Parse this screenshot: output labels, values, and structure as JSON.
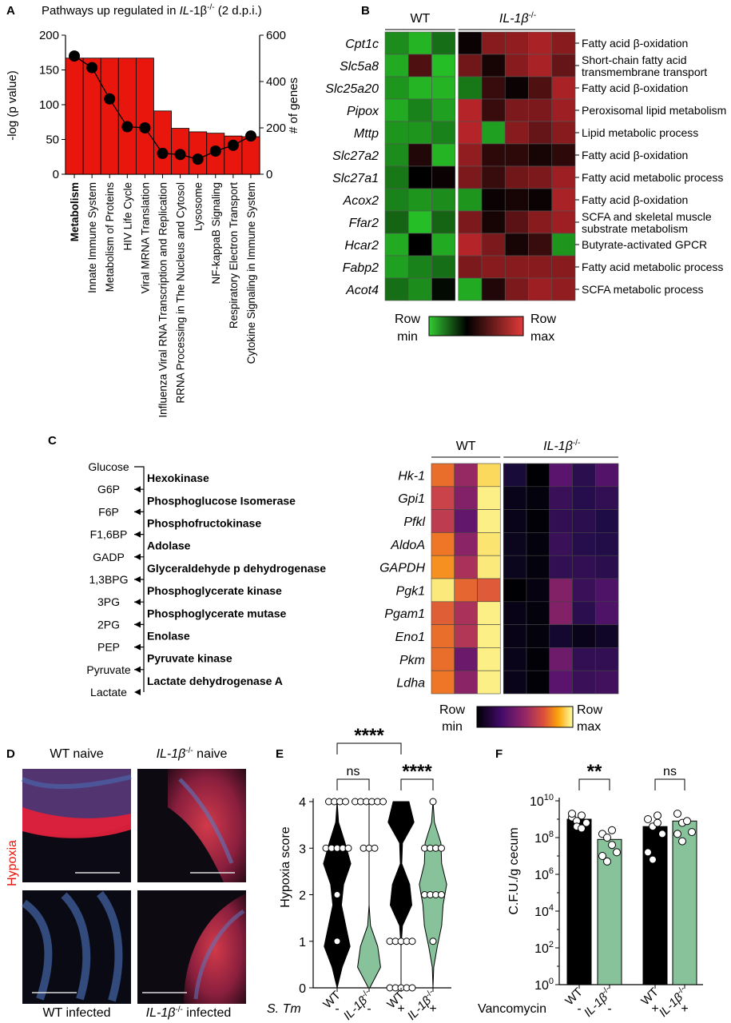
{
  "figure": {
    "panel_letters": [
      "A",
      "B",
      "C",
      "D",
      "E",
      "F"
    ]
  },
  "colors": {
    "bar_red": "#e8160c",
    "green_fill": "#87c29b",
    "heatmap_green": "#33cc33",
    "heatmap_red": "#d9333f",
    "inferno_low": "#160b39",
    "inferno_high": "#fcffa4"
  },
  "chart_data": [
    {
      "panel": "A",
      "type": "bar",
      "title": "Pathways up regulated in IL-1β-/- (2 d.p.i.)",
      "title_prefix": "Pathways up regulated in ",
      "title_gene": "IL",
      "title_rest": "-1β",
      "title_sup": "-/-",
      "title_suffix": " (2 d.p.i.)",
      "ylabel": "-log (p value)",
      "y2label": "# of genes",
      "ylim": [
        0,
        200
      ],
      "y2lim": [
        0,
        600
      ],
      "yticks": [
        "0",
        "50",
        "100",
        "150",
        "200"
      ],
      "y2ticks": [
        "0",
        "200",
        "400",
        "600"
      ],
      "categories": [
        "Metabolism",
        "Innate Immune System",
        "Metabolism of Proteins",
        "HIV Life Cycle",
        "Viral MRNA Translation",
        "Influenza Viral RNA Transcription and Replication",
        "RRNA Processing in The Nucleus and Cytosol",
        "Lysosome",
        "NF-kappaB Signaling",
        "Respiratory Electron Transport",
        "Cytokine Signaling in Immune System"
      ],
      "bold_category": "Metabolism",
      "values": [
        167,
        167,
        167,
        167,
        167,
        91,
        66,
        61,
        59,
        55,
        54
      ],
      "line_values": [
        510,
        460,
        325,
        205,
        200,
        90,
        85,
        65,
        100,
        125,
        165
      ]
    },
    {
      "panel": "B",
      "type": "heatmap",
      "groups": [
        {
          "label": "WT",
          "n": 3
        },
        {
          "label": "IL-1β-/-",
          "gene": "IL-1β",
          "sup": "-/-",
          "n": 5
        }
      ],
      "rows": [
        "Cpt1c",
        "Slc5a8",
        "Slc25a20",
        "Pipox",
        "Mttp",
        "Slc27a2",
        "Slc27a1",
        "Acox2",
        "Ffar2",
        "Hcar2",
        "Fabp2",
        "Acot4"
      ],
      "annotations": [
        [
          "Fatty acid β-oxidation"
        ],
        [
          "Short-chain fatty acid",
          "transmembrane transport"
        ],
        [
          "Fatty acid β-oxidation"
        ],
        [
          "Peroxisomal lipid metabolism"
        ],
        [
          "Lipid metabolic process"
        ],
        [
          "Fatty acid β-oxidation"
        ],
        [
          "Fatty acid metabolic process"
        ],
        [
          "Fatty acid β-oxidation"
        ],
        [
          "SCFA and skeletal muscle",
          "substrate metabolism"
        ],
        [
          "Butyrate-activated GPCR"
        ],
        [
          "Fatty acid metabolic process"
        ],
        [
          "SCFA metabolic process"
        ]
      ],
      "values": [
        [
          -0.7,
          -0.9,
          -0.55,
          0.05,
          0.6,
          0.65,
          0.75,
          0.6
        ],
        [
          -0.85,
          0.35,
          -0.95,
          0.5,
          0.1,
          0.6,
          0.75,
          0.45
        ],
        [
          -0.75,
          -0.9,
          -0.9,
          -0.6,
          0.25,
          0.05,
          0.35,
          0.75
        ],
        [
          -0.85,
          -0.65,
          -0.8,
          0.8,
          0.25,
          0.55,
          0.55,
          0.7
        ],
        [
          -0.75,
          -0.75,
          -0.65,
          0.8,
          -0.8,
          0.6,
          0.45,
          0.6
        ],
        [
          -0.7,
          0.15,
          -0.9,
          0.65,
          0.2,
          0.2,
          0.1,
          0.2
        ],
        [
          -0.6,
          0.0,
          0.05,
          0.55,
          0.25,
          0.5,
          0.55,
          0.7
        ],
        [
          -0.65,
          -0.75,
          -0.7,
          -0.75,
          0.05,
          0.1,
          0.05,
          0.75
        ],
        [
          -0.5,
          -0.95,
          -0.5,
          0.55,
          0.1,
          0.4,
          0.6,
          0.7
        ],
        [
          -0.85,
          0.0,
          -0.85,
          0.8,
          0.55,
          0.1,
          0.25,
          -0.75
        ],
        [
          -0.8,
          -0.65,
          -0.55,
          0.55,
          0.6,
          0.6,
          0.6,
          0.6
        ],
        [
          -0.55,
          -0.7,
          -0.05,
          -0.85,
          0.15,
          0.55,
          0.7,
          0.65
        ]
      ],
      "legend": {
        "min_top": "Row",
        "min_bottom": "min",
        "max_top": "Row",
        "max_bottom": "max"
      }
    },
    {
      "panel": "C",
      "type": "heatmap",
      "pathway_metabolites": [
        "Glucose",
        "G6P",
        "F6P",
        "F1,6BP",
        "GADP",
        "1,3BPG",
        "3PG",
        "2PG",
        "PEP",
        "Pyruvate",
        "Lactate"
      ],
      "pathway_enzymes": [
        "Hexokinase",
        "Phosphoglucose Isomerase",
        "Phosphofructokinase",
        "Adolase",
        "Glyceraldehyde p dehydrogenase",
        "Phosphoglycerate kinase",
        "Phosphoglycerate mutase",
        "Enolase",
        "Pyruvate kinase",
        "Lactate dehydrogenase A"
      ],
      "groups": [
        {
          "label": "WT",
          "n": 3
        },
        {
          "label": "IL-1β-/-",
          "gene": "IL-1β",
          "sup": "-/-",
          "n": 5
        }
      ],
      "rows": [
        "Hk-1",
        "Gpi1",
        "Pfkl",
        "AldoA",
        "GAPDH",
        "Pgk1",
        "Pgam1",
        "Eno1",
        "Pkm",
        "Ldha"
      ],
      "values": [
        [
          0.7,
          0.45,
          0.93,
          0.12,
          0.0,
          0.3,
          0.18,
          0.28
        ],
        [
          0.58,
          0.4,
          0.97,
          0.05,
          0.02,
          0.22,
          0.17,
          0.2
        ],
        [
          0.55,
          0.32,
          0.97,
          0.05,
          0.01,
          0.2,
          0.18,
          0.15
        ],
        [
          0.72,
          0.42,
          0.95,
          0.06,
          0.02,
          0.22,
          0.17,
          0.16
        ],
        [
          0.78,
          0.5,
          0.96,
          0.06,
          0.02,
          0.2,
          0.2,
          0.18
        ],
        [
          0.96,
          0.68,
          0.65,
          0.0,
          0.03,
          0.4,
          0.22,
          0.27
        ],
        [
          0.66,
          0.5,
          0.97,
          0.04,
          0.02,
          0.4,
          0.18,
          0.27
        ],
        [
          0.7,
          0.52,
          0.97,
          0.04,
          0.02,
          0.1,
          0.05,
          0.08
        ],
        [
          0.7,
          0.34,
          0.97,
          0.05,
          0.01,
          0.35,
          0.2,
          0.2
        ],
        [
          0.72,
          0.42,
          0.97,
          0.05,
          0.01,
          0.3,
          0.22,
          0.24
        ]
      ],
      "legend": {
        "min_top": "Row",
        "min_bottom": "min",
        "max_top": "Row",
        "max_bottom": "max"
      }
    },
    {
      "panel": "E",
      "type": "scatter",
      "ylabel": "Hypoxia score",
      "ylim": [
        0,
        4
      ],
      "yticks": [
        "0",
        "1",
        "2",
        "3",
        "4"
      ],
      "categories": [
        {
          "label": "WT",
          "italic": false,
          "fill": "#000000"
        },
        {
          "label": "IL-1β-/-",
          "gene": "IL-1β",
          "sup": "-/-",
          "italic": true,
          "fill": "#87c29b"
        },
        {
          "label": "WT",
          "italic": false,
          "fill": "#000000"
        },
        {
          "label": "IL-1β-/-",
          "gene": "IL-1β",
          "sup": "-/-",
          "italic": true,
          "fill": "#87c29b"
        }
      ],
      "points": [
        [
          4,
          4,
          4,
          4,
          3,
          3,
          3,
          3,
          3,
          2,
          1
        ],
        [
          4,
          4,
          4,
          4,
          4,
          4,
          3,
          3,
          3
        ],
        [
          1,
          1,
          1,
          1,
          1,
          0,
          0,
          0,
          0,
          0
        ],
        [
          4,
          3,
          3,
          3,
          3,
          2,
          2,
          2,
          2,
          1
        ]
      ],
      "violin_widths": [
        [
          0,
          0.1,
          0.55,
          0.95,
          0.45,
          0.3,
          0.6,
          0.9,
          0.35,
          0
        ],
        [
          0,
          0,
          0,
          0,
          0,
          0,
          0.1,
          0.6,
          0.8,
          0.05
        ],
        [
          0.55,
          0.9,
          0.1,
          0.05,
          0.6,
          0.75,
          0.1,
          0,
          0,
          0
        ],
        [
          0,
          0.1,
          0.55,
          0.6,
          0.95,
          0.7,
          0.6,
          0.3,
          0.05,
          0
        ]
      ],
      "significance": [
        {
          "label": "ns",
          "from": 0,
          "to": 1
        },
        {
          "label": "****",
          "from": 2,
          "to": 3
        },
        {
          "label": "****",
          "from": 0,
          "to": 2
        }
      ],
      "condition_label": "S. Tm",
      "condition_values": [
        "-",
        "-",
        "+",
        "+"
      ]
    },
    {
      "panel": "F",
      "type": "bar",
      "ylabel": "C.F.U./g cecum",
      "yscale": "log",
      "ylim_exp": [
        0,
        10
      ],
      "yticks": [
        "10^0",
        "10^2",
        "10^4",
        "10^6",
        "10^8",
        "10^10"
      ],
      "categories": [
        {
          "label": "WT",
          "italic": false,
          "fill": "#000000"
        },
        {
          "label": "IL-1β-/-",
          "gene": "IL-1β",
          "sup": "-/-",
          "italic": true,
          "fill": "#87c29b"
        },
        {
          "label": "WT",
          "italic": false,
          "fill": "#000000"
        },
        {
          "label": "IL-1β-/-",
          "gene": "IL-1β",
          "sup": "-/-",
          "italic": true,
          "fill": "#87c29b"
        }
      ],
      "values_log10": [
        9.0,
        7.9,
        8.6,
        8.9
      ],
      "points_log10": [
        [
          9.1,
          8.9,
          9.2,
          8.8,
          9.3,
          8.6,
          8.5
        ],
        [
          8.2,
          8.0,
          7.6,
          7.2,
          7.0,
          6.7,
          8.4
        ],
        [
          9.0,
          8.6,
          8.8,
          8.2,
          7.2,
          6.8,
          9.2
        ],
        [
          9.3,
          8.8,
          8.9,
          8.3,
          8.2,
          7.8
        ]
      ],
      "significance": [
        {
          "label": "**",
          "from": 0,
          "to": 1
        },
        {
          "label": "ns",
          "from": 2,
          "to": 3
        }
      ],
      "condition_label": "Vancomycin",
      "condition_values": [
        "-",
        "-",
        "+",
        "+"
      ]
    }
  ],
  "panel_D": {
    "labels": [
      "WT naive",
      "IL-1β-/- naive",
      "WT infected",
      "IL-1β-/- infected"
    ],
    "side_label": "Hypoxia",
    "gene": "IL-1β",
    "sup": "-/-",
    "naive_suffix": " naive",
    "infected_suffix": " infected"
  }
}
